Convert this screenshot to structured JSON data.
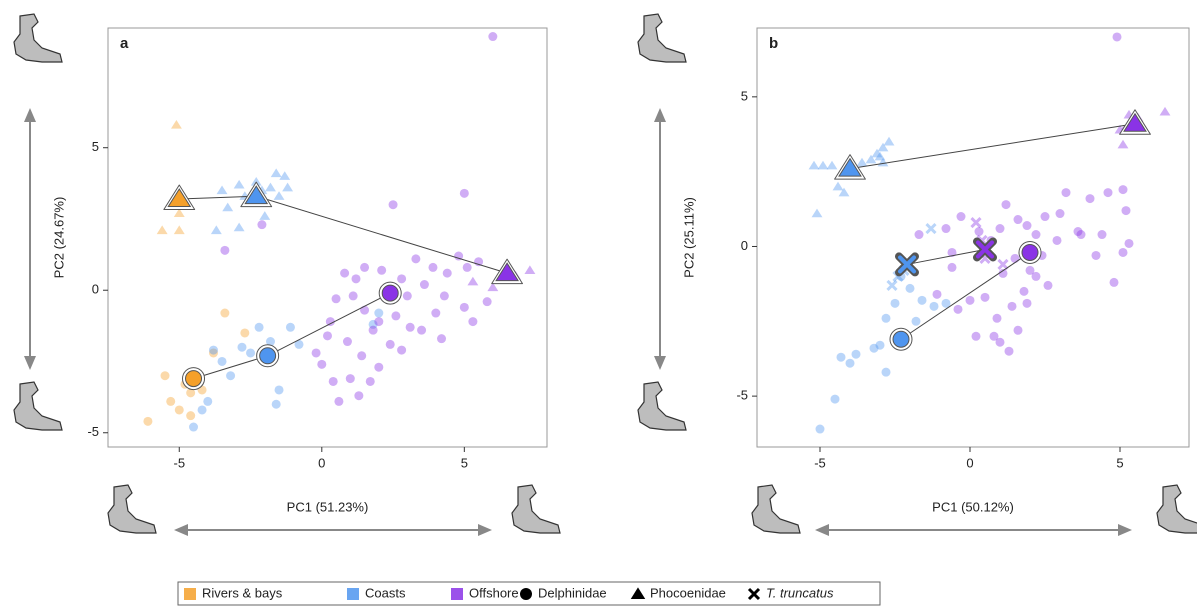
{
  "chart_data": [
    {
      "type": "scatter",
      "label": "a",
      "xlabel": "PC1  (51.23%)",
      "ylabel": "PC2  (24.67%)",
      "xlim": [
        -7.5,
        7.9
      ],
      "ylim": [
        -5.5,
        9.2
      ],
      "xticks": [
        -5,
        0,
        5
      ],
      "yticks": [
        -5,
        0,
        5
      ],
      "point_opacity": 0.4,
      "points": [
        {
          "marker": "triangle",
          "color": "#f5a02a",
          "x": [
            -5.1,
            -5.6,
            -5.0,
            -5.0
          ],
          "y": [
            5.8,
            2.1,
            2.1,
            2.7
          ]
        },
        {
          "marker": "circle",
          "color": "#f5a02a",
          "x": [
            -6.1,
            -5.5,
            -5.3,
            -5.0,
            -4.6,
            -4.8,
            -3.4,
            -2.7,
            -3.8,
            -4.6,
            -4.2
          ],
          "y": [
            -4.6,
            -3.0,
            -3.9,
            -4.2,
            -3.6,
            -3.3,
            -0.8,
            -1.5,
            -2.2,
            -4.4,
            -3.5
          ]
        },
        {
          "marker": "triangle",
          "color": "#4f95ef",
          "x": [
            -2.9,
            -2.7,
            -2.3,
            -2.1,
            -1.8,
            -1.6,
            -1.3,
            -1.2,
            -3.7,
            -3.3,
            -2.9,
            -2.0,
            -3.5,
            -1.5
          ],
          "y": [
            3.7,
            3.3,
            3.8,
            3.5,
            3.6,
            4.1,
            4.0,
            3.6,
            2.1,
            2.9,
            2.2,
            2.6,
            3.5,
            3.3
          ]
        },
        {
          "marker": "circle",
          "color": "#4f95ef",
          "x": [
            -4.5,
            -4.0,
            -3.8,
            -3.2,
            -2.8,
            -2.2,
            -1.8,
            -1.5,
            -1.1,
            -0.8,
            -1.6,
            -3.5,
            -2.5,
            1.8,
            2.0,
            -4.2
          ],
          "y": [
            -4.8,
            -3.9,
            -2.1,
            -3.0,
            -2.0,
            -1.3,
            -1.8,
            -3.5,
            -1.3,
            -1.9,
            -4.0,
            -2.5,
            -2.2,
            -1.2,
            -0.8,
            -4.2
          ]
        },
        {
          "marker": "triangle",
          "color": "#8a33e6",
          "x": [
            6.0,
            6.8,
            7.3,
            5.3,
            6.5
          ],
          "y": [
            0.1,
            0.5,
            0.7,
            0.3,
            0.4
          ]
        },
        {
          "marker": "circle",
          "color": "#8a33e6",
          "x": [
            6.0,
            -3.4,
            -2.1,
            2.5,
            5.0,
            0.8,
            1.2,
            1.5,
            2.1,
            2.8,
            3.3,
            3.9,
            4.4,
            4.8,
            5.1,
            5.5,
            4.3,
            5.0,
            5.8,
            0.5,
            1.1,
            1.5,
            2.0,
            2.6,
            3.1,
            0.2,
            0.9,
            1.4,
            2.0,
            2.8,
            3.5,
            4.0,
            0.0,
            0.4,
            1.0,
            1.3,
            0.6,
            1.7,
            -0.2,
            3.0,
            3.6,
            5.3,
            4.2,
            2.4,
            1.8,
            0.3
          ],
          "y": [
            8.9,
            1.4,
            2.3,
            3.0,
            3.4,
            0.6,
            0.4,
            0.8,
            0.7,
            0.4,
            1.1,
            0.8,
            0.6,
            1.2,
            0.8,
            1.0,
            -0.2,
            -0.6,
            -0.4,
            -0.3,
            -0.2,
            -0.7,
            -1.1,
            -0.9,
            -1.3,
            -1.6,
            -1.8,
            -2.3,
            -2.7,
            -2.1,
            -1.4,
            -0.8,
            -2.6,
            -3.2,
            -3.1,
            -3.7,
            -3.9,
            -3.2,
            -2.2,
            -0.2,
            0.2,
            -1.1,
            -1.7,
            -1.9,
            -1.4,
            -1.1
          ]
        }
      ],
      "means": [
        {
          "marker": "triangle",
          "colors": [
            "#f5a02a",
            "#4f95ef",
            "#8a33e6"
          ],
          "x": [
            -5.0,
            -2.3,
            6.5
          ],
          "y": [
            3.2,
            3.3,
            0.6
          ]
        },
        {
          "marker": "circle",
          "colors": [
            "#f5a02a",
            "#4f95ef",
            "#8a33e6"
          ],
          "x": [
            -4.5,
            -1.9,
            2.4
          ],
          "y": [
            -3.1,
            -2.3,
            -0.1
          ]
        }
      ]
    },
    {
      "type": "scatter",
      "label": "b",
      "xlabel": "PC1  (50.12%)",
      "ylabel": "PC2  (25.11%)",
      "xlim": [
        -7.1,
        7.3
      ],
      "ylim": [
        -6.7,
        7.3
      ],
      "xticks": [
        -5,
        0,
        5
      ],
      "yticks": [
        -5,
        0,
        5
      ],
      "point_opacity": 0.4,
      "points": [
        {
          "marker": "triangle",
          "color": "#4f95ef",
          "x": [
            -5.2,
            -4.9,
            -4.6,
            -4.4,
            -4.2,
            -4.0,
            -3.6,
            -3.3,
            -3.1,
            -2.9,
            -2.7,
            -2.9,
            -5.1,
            -3.8,
            -3.0
          ],
          "y": [
            2.7,
            2.7,
            2.7,
            2.0,
            1.8,
            2.6,
            2.8,
            2.9,
            3.1,
            3.3,
            3.5,
            2.8,
            1.1,
            2.4,
            3.0
          ]
        },
        {
          "marker": "triangle",
          "color": "#8a33e6",
          "x": [
            5.3,
            5.6,
            5.1,
            6.5,
            5.0
          ],
          "y": [
            4.4,
            4.3,
            3.4,
            4.5,
            3.9
          ]
        },
        {
          "marker": "circle",
          "color": "#4f95ef",
          "x": [
            -5.0,
            -4.5,
            -4.3,
            -4.0,
            -3.8,
            -3.2,
            -2.8,
            -2.8,
            -2.5,
            -2.0,
            -1.6,
            -1.2,
            -0.8,
            -2.3,
            -1.8,
            -3.0
          ],
          "y": [
            -6.1,
            -5.1,
            -3.7,
            -3.9,
            -3.6,
            -3.4,
            -4.2,
            -2.4,
            -1.9,
            -1.4,
            -1.8,
            -2.0,
            -1.9,
            -1.0,
            -2.5,
            -3.3
          ]
        },
        {
          "marker": "cross",
          "color": "#4f95ef",
          "x": [
            -2.6,
            -2.4,
            -1.3,
            -2.2
          ],
          "y": [
            -1.3,
            -1.0,
            0.6,
            -0.8
          ]
        },
        {
          "marker": "cross",
          "color": "#8a33e6",
          "x": [
            0.2,
            0.5,
            1.1,
            0.4
          ],
          "y": [
            0.8,
            -0.4,
            -0.6,
            0.2
          ]
        },
        {
          "marker": "circle",
          "color": "#8a33e6",
          "x": [
            4.9,
            5.2,
            -0.6,
            0.3,
            0.7,
            1.2,
            1.6,
            1.9,
            2.2,
            2.5,
            3.0,
            3.6,
            4.0,
            4.4,
            4.6,
            5.1,
            5.2,
            5.3,
            5.1,
            4.2,
            3.7,
            2.9,
            2.4,
            1.5,
            1.1,
            2.0,
            2.6,
            1.8,
            1.4,
            0.9,
            0.5,
            0.0,
            -0.4,
            0.2,
            0.8,
            1.0,
            1.3,
            1.6,
            -1.1,
            -0.6,
            3.2,
            -1.7,
            -0.3,
            -0.8,
            1.9,
            2.2,
            4.8,
            1.0
          ],
          "y": [
            7.0,
            3.9,
            -0.2,
            0.5,
            0.2,
            1.4,
            0.9,
            0.7,
            0.4,
            1.0,
            1.1,
            0.5,
            1.6,
            0.4,
            1.8,
            1.9,
            1.2,
            0.1,
            -0.2,
            -0.3,
            0.4,
            0.2,
            -0.3,
            -0.4,
            -0.9,
            -0.8,
            -1.3,
            -1.5,
            -2.0,
            -2.4,
            -1.7,
            -1.8,
            -2.1,
            -3.0,
            -3.0,
            -3.2,
            -3.5,
            -2.8,
            -1.6,
            -0.7,
            1.8,
            0.4,
            1.0,
            0.6,
            -1.9,
            -1.0,
            -1.2,
            0.6
          ]
        }
      ],
      "means": [
        {
          "marker": "triangle",
          "colors": [
            "#4f95ef",
            "#8a33e6"
          ],
          "x": [
            -4.0,
            5.5
          ],
          "y": [
            2.6,
            4.1
          ]
        },
        {
          "marker": "circle",
          "colors": [
            "#4f95ef",
            "#8a33e6"
          ],
          "x": [
            -2.3,
            2.0
          ],
          "y": [
            -3.1,
            -0.2
          ]
        },
        {
          "marker": "cross",
          "colors": [
            "#4f95ef",
            "#8a33e6"
          ],
          "x": [
            -2.1,
            0.5
          ],
          "y": [
            -0.6,
            -0.1
          ]
        }
      ]
    }
  ],
  "legend": {
    "groups": [
      {
        "name": "Rivers & bays",
        "color": "#f5a02a"
      },
      {
        "name": "Coasts",
        "color": "#4f95ef"
      },
      {
        "name": "Offshore",
        "color": "#8a33e6"
      }
    ],
    "shapes": [
      {
        "name": "Delphinidae",
        "marker": "circle"
      },
      {
        "name": "Phocoenidae",
        "marker": "triangle"
      },
      {
        "name": "T. truncatus",
        "marker": "cross"
      }
    ]
  }
}
